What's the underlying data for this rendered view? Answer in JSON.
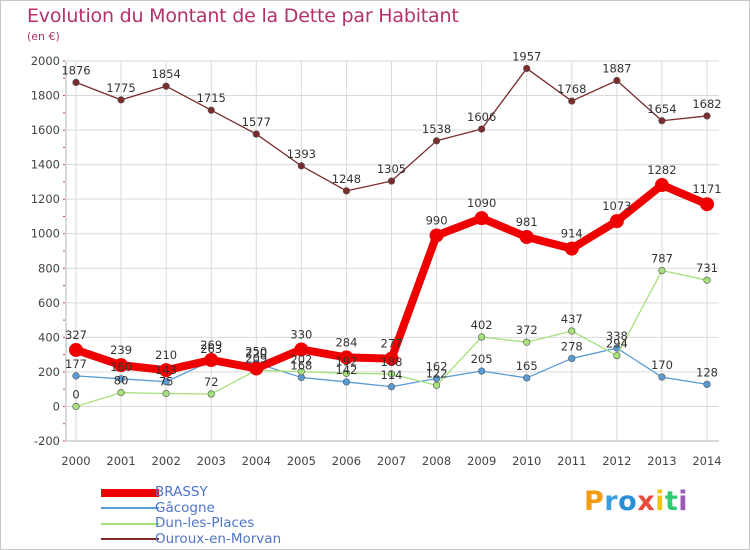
{
  "title": "Evolution du Montant de la Dette par Habitant",
  "subtitle": "(en €)",
  "chart_data": {
    "type": "line",
    "x": [
      "2000",
      "2001",
      "2002",
      "2003",
      "2004",
      "2005",
      "2006",
      "2007",
      "2008",
      "2009",
      "2010",
      "2011",
      "2012",
      "2013",
      "2014"
    ],
    "ylim": [
      -200,
      2000
    ],
    "yticks": [
      -200,
      0,
      200,
      400,
      600,
      800,
      1000,
      1200,
      1400,
      1600,
      1800,
      2000
    ],
    "grid": true,
    "legend_position": "bottom-left",
    "series": [
      {
        "name": "BRASSY",
        "color": "#ee0000",
        "emphasis": true,
        "values": [
          327,
          239,
          210,
          269,
          220,
          330,
          284,
          277,
          990,
          1090,
          981,
          914,
          1073,
          1282,
          1171
        ]
      },
      {
        "name": "Gâcogne",
        "color": "#5b9bd5",
        "emphasis": false,
        "values": [
          177,
          160,
          143,
          263,
          250,
          168,
          142,
          114,
          162,
          205,
          165,
          278,
          338,
          170,
          128
        ]
      },
      {
        "name": "Dun-les-Places",
        "color": "#a6e07a",
        "emphasis": false,
        "values": [
          0,
          80,
          75,
          72,
          209,
          202,
          192,
          188,
          122,
          402,
          372,
          437,
          294,
          787,
          731
        ]
      },
      {
        "name": "Ouroux-en-Morvan",
        "color": "#7b2c2c",
        "emphasis": false,
        "values": [
          1876,
          1775,
          1854,
          1715,
          1577,
          1393,
          1248,
          1305,
          1538,
          1606,
          1957,
          1768,
          1887,
          1654,
          1682
        ]
      }
    ]
  },
  "logo": {
    "text": "Proxiti",
    "letters": [
      {
        "ch": "P",
        "color": "#f39c12"
      },
      {
        "ch": "r",
        "color": "#3aa0e0"
      },
      {
        "ch": "o",
        "color": "#2b8fd6"
      },
      {
        "ch": "x",
        "color": "#e84c3d"
      },
      {
        "ch": "i",
        "color": "#f1c40f"
      },
      {
        "ch": "t",
        "color": "#2ecc71"
      },
      {
        "ch": "i",
        "color": "#9b59b6"
      }
    ]
  },
  "colors": {
    "title": "#b5306e",
    "legend_text": "#4f74c8",
    "axis_text": "#444444",
    "grid": "#d9d9d9",
    "axis_line": "#b0b0b0"
  }
}
